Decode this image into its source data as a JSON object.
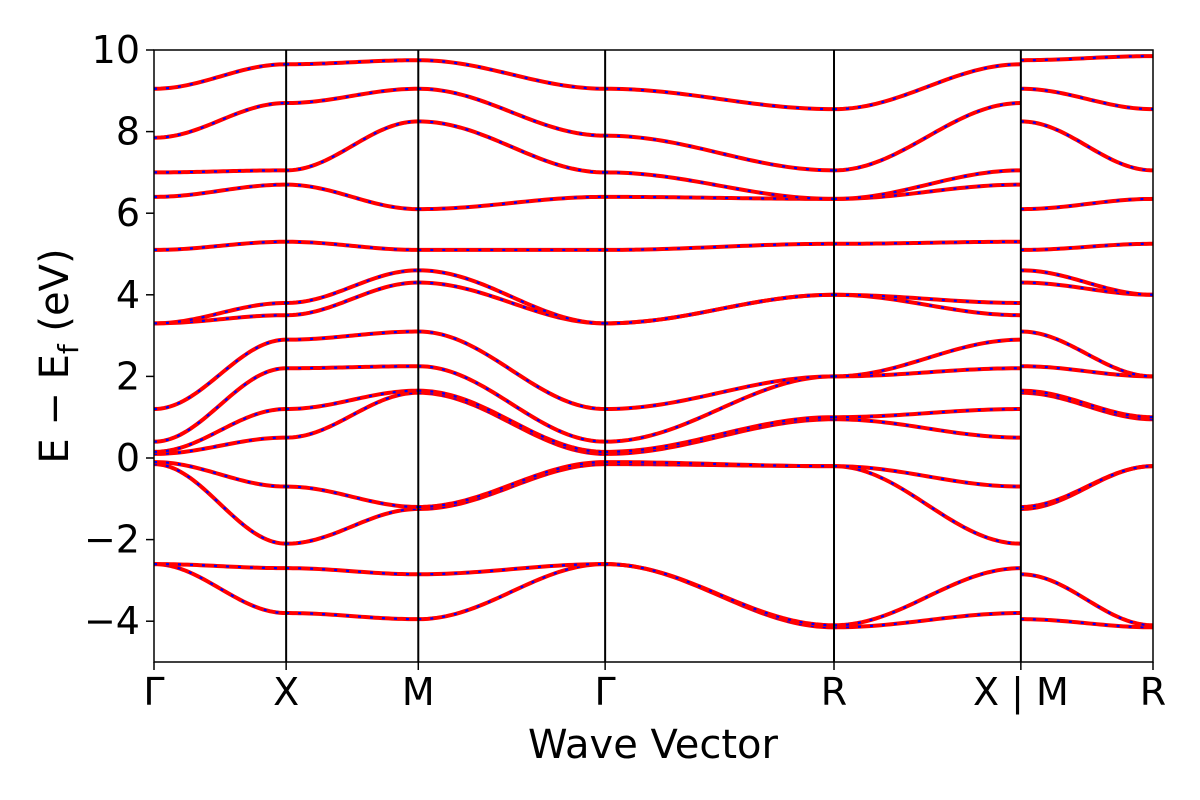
{
  "chart_data": {
    "type": "line",
    "xlabel": "Wave Vector",
    "ylabel_parts": {
      "main": "E − E",
      "sub": "f",
      "unit": " (eV)"
    },
    "ylim": [
      -5,
      10
    ],
    "yticks": [
      {
        "value": -4,
        "label": "−4"
      },
      {
        "value": -2,
        "label": "−2"
      },
      {
        "value": 0,
        "label": "0"
      },
      {
        "value": 2,
        "label": "2"
      },
      {
        "value": 4,
        "label": "4"
      },
      {
        "value": 6,
        "label": "6"
      },
      {
        "value": 8,
        "label": "8"
      },
      {
        "value": 10,
        "label": "10"
      }
    ],
    "xticks": [
      {
        "x": 0,
        "label": "Γ"
      },
      {
        "x": 1,
        "label": "X"
      },
      {
        "x": 2,
        "label": "M"
      },
      {
        "x": 3.414,
        "label": "Γ"
      },
      {
        "x": 5.146,
        "label": "R"
      },
      {
        "x": 6.56,
        "label": "X | M"
      },
      {
        "x": 7.56,
        "label": "R"
      }
    ],
    "xlim": [
      0,
      7.56
    ],
    "grid": false,
    "colors": {
      "band_primary": "#ff0000",
      "band_overlay": "#0000ff"
    },
    "segments": [
      {
        "x": [
          0,
          1
        ],
        "bands": [
          [
            -2.6,
            -3.8
          ],
          [
            -2.6,
            -2.7
          ],
          [
            -0.15,
            -2.1
          ],
          [
            -0.1,
            -0.7
          ],
          [
            0.1,
            0.5
          ],
          [
            0.15,
            1.2
          ],
          [
            0.4,
            2.2
          ],
          [
            1.2,
            2.9
          ],
          [
            3.3,
            3.5
          ],
          [
            3.3,
            3.8
          ],
          [
            5.1,
            5.3
          ],
          [
            6.4,
            6.7
          ],
          [
            7.0,
            7.05
          ],
          [
            7.85,
            8.7
          ],
          [
            9.05,
            9.65
          ]
        ]
      },
      {
        "x": [
          1,
          2
        ],
        "bands": [
          [
            -3.8,
            -3.95
          ],
          [
            -2.7,
            -2.85
          ],
          [
            -2.1,
            -1.25
          ],
          [
            -0.7,
            -1.2
          ],
          [
            0.5,
            1.6
          ],
          [
            1.2,
            1.65
          ],
          [
            2.2,
            2.25
          ],
          [
            2.9,
            3.1
          ],
          [
            3.5,
            4.3
          ],
          [
            3.8,
            4.6
          ],
          [
            5.3,
            5.1
          ],
          [
            6.7,
            6.1
          ],
          [
            7.05,
            8.25
          ],
          [
            8.7,
            9.05
          ],
          [
            9.65,
            9.75
          ]
        ]
      },
      {
        "x": [
          2,
          3.414
        ],
        "bands": [
          [
            -3.95,
            -2.6
          ],
          [
            -2.85,
            -2.6
          ],
          [
            -1.25,
            -0.15
          ],
          [
            -1.2,
            -0.1
          ],
          [
            1.6,
            0.1
          ],
          [
            1.65,
            0.15
          ],
          [
            2.25,
            0.4
          ],
          [
            3.1,
            1.2
          ],
          [
            4.3,
            3.3
          ],
          [
            4.6,
            3.3
          ],
          [
            5.1,
            5.1
          ],
          [
            6.1,
            6.4
          ],
          [
            8.25,
            7.0
          ],
          [
            9.05,
            7.9
          ],
          [
            9.75,
            9.05
          ]
        ]
      },
      {
        "x": [
          3.414,
          5.146
        ],
        "bands": [
          [
            -2.6,
            -4.15
          ],
          [
            -2.6,
            -4.1
          ],
          [
            -0.15,
            -0.2
          ],
          [
            -0.1,
            -0.2
          ],
          [
            0.1,
            0.95
          ],
          [
            0.15,
            1.0
          ],
          [
            0.4,
            2.0
          ],
          [
            1.2,
            2.0
          ],
          [
            3.3,
            4.0
          ],
          [
            3.3,
            4.0
          ],
          [
            5.1,
            5.25
          ],
          [
            6.4,
            6.35
          ],
          [
            7.0,
            6.35
          ],
          [
            7.9,
            7.05
          ],
          [
            9.05,
            8.55
          ]
        ]
      },
      {
        "x": [
          5.146,
          6.56
        ],
        "bands": [
          [
            -4.15,
            -3.8
          ],
          [
            -4.1,
            -2.7
          ],
          [
            -0.2,
            -2.1
          ],
          [
            -0.2,
            -0.7
          ],
          [
            0.95,
            0.5
          ],
          [
            1.0,
            1.2
          ],
          [
            2.0,
            2.2
          ],
          [
            2.0,
            2.9
          ],
          [
            4.0,
            3.5
          ],
          [
            4.0,
            3.8
          ],
          [
            5.25,
            5.3
          ],
          [
            6.35,
            6.7
          ],
          [
            6.35,
            7.05
          ],
          [
            7.05,
            8.7
          ],
          [
            8.55,
            9.65
          ]
        ]
      },
      {
        "x": [
          6.56,
          7.56
        ],
        "bands": [
          [
            -3.95,
            -4.15
          ],
          [
            -2.85,
            -4.1
          ],
          [
            -1.25,
            -0.2
          ],
          [
            -1.2,
            -0.2
          ],
          [
            1.6,
            0.95
          ],
          [
            1.65,
            1.0
          ],
          [
            2.25,
            2.0
          ],
          [
            3.1,
            2.0
          ],
          [
            4.3,
            4.0
          ],
          [
            4.6,
            4.0
          ],
          [
            5.1,
            5.25
          ],
          [
            6.1,
            6.35
          ],
          [
            8.25,
            7.05
          ],
          [
            9.05,
            8.55
          ],
          [
            9.75,
            9.85
          ]
        ]
      }
    ]
  }
}
